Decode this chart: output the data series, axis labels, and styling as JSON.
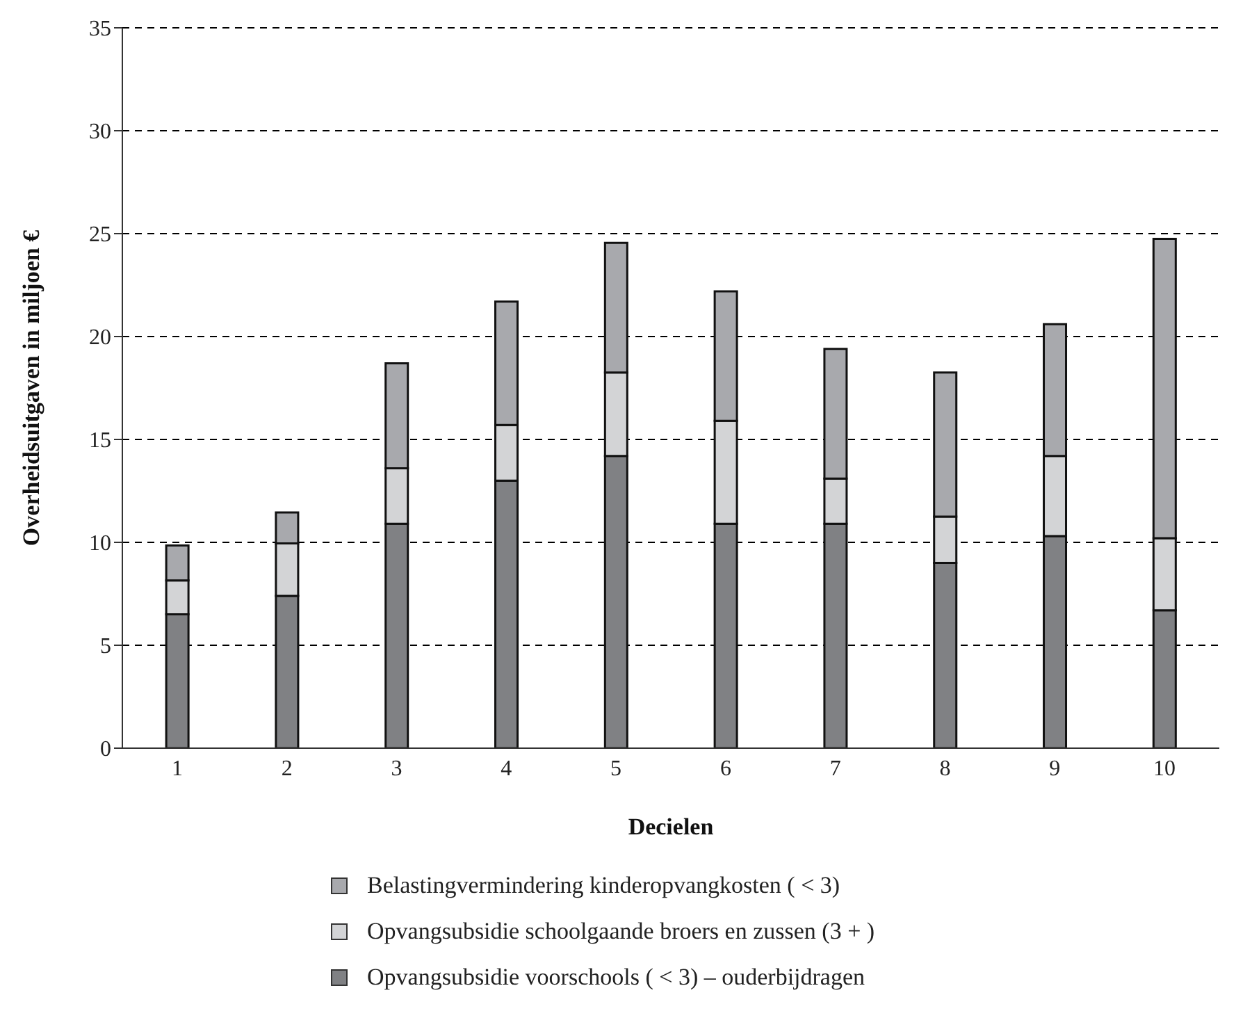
{
  "chart_data": {
    "type": "bar",
    "stacked": true,
    "xlabel": "Decielen",
    "ylabel": "Overheidsuitgaven in miljoen €",
    "categories": [
      "1",
      "2",
      "3",
      "4",
      "5",
      "6",
      "7",
      "8",
      "9",
      "10"
    ],
    "series": [
      {
        "name": "Opvangsubsidie voorschools ( <  3) – ouderbijdragen",
        "color": "#808184",
        "values": [
          6.5,
          7.4,
          10.9,
          13.0,
          14.2,
          10.9,
          10.9,
          9.0,
          10.3,
          6.7
        ]
      },
      {
        "name": "Opvangsubsidie schoolgaande broers en zussen (3 + )",
        "color": "#d3d4d6",
        "values": [
          1.65,
          2.55,
          2.7,
          2.7,
          4.05,
          5.0,
          2.2,
          2.25,
          3.9,
          3.5
        ]
      },
      {
        "name": "Belastingvermindering kinderopvangkosten ( <  3)",
        "color": "#a8a9ad",
        "values": [
          1.7,
          1.5,
          5.1,
          6.0,
          6.3,
          6.3,
          6.3,
          7.0,
          6.4,
          14.55
        ]
      }
    ],
    "ylim": [
      0,
      35
    ],
    "yticks": [
      0,
      5,
      10,
      15,
      20,
      25,
      30,
      35
    ],
    "grid": "y",
    "legend": "bottom"
  }
}
